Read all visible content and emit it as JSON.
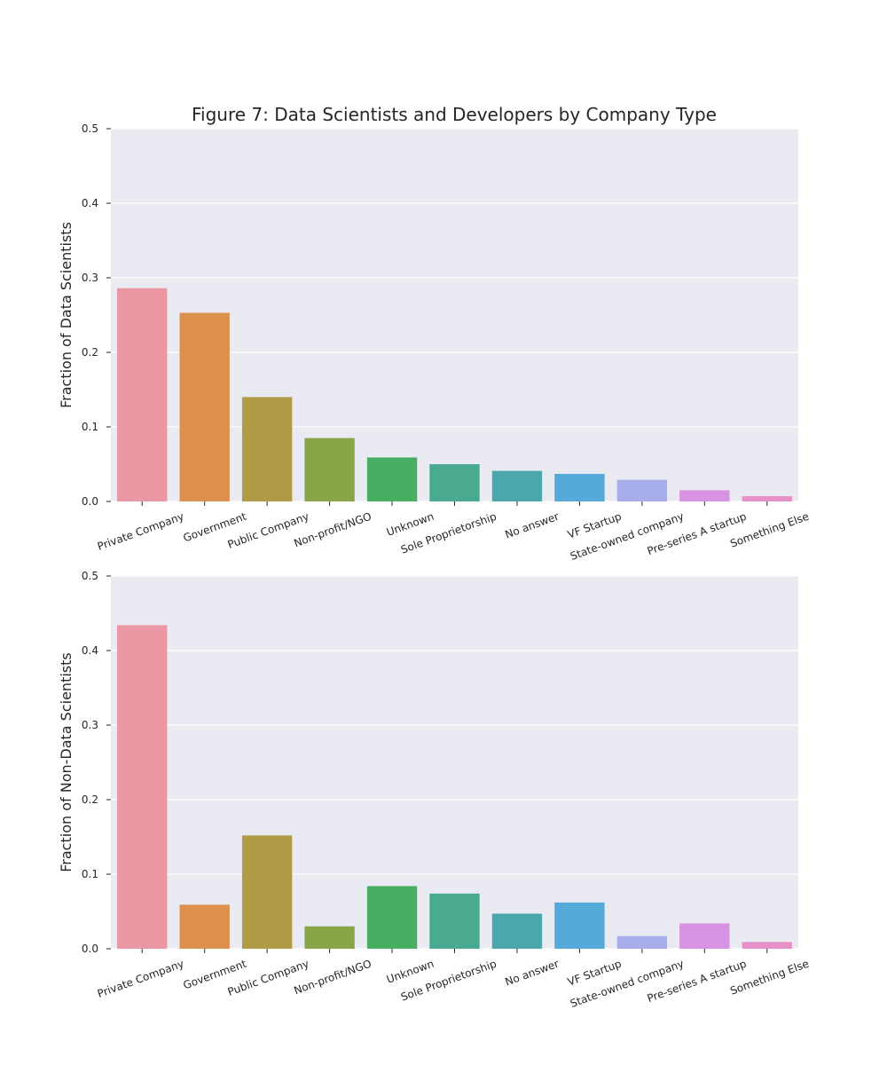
{
  "title": "Figure 7: Data Scientists and Developers by Company Type",
  "colors": [
    "#ea96a3",
    "#dd8f4c",
    "#b09c47",
    "#8aa548",
    "#48ae63",
    "#49aa8f",
    "#4aa8ac",
    "#53a9d8",
    "#a8aeea",
    "#d792e3",
    "#e68fc8"
  ],
  "chart_data": [
    {
      "type": "bar",
      "categories": [
        "Private Company",
        "Government",
        "Public Company",
        "Non-profit/NGO",
        "Unknown",
        "Sole Proprietorship",
        "No answer",
        "VF Startup",
        "State-owned company",
        "Pre-series A startup",
        "Something Else"
      ],
      "values": [
        0.286,
        0.253,
        0.14,
        0.085,
        0.059,
        0.05,
        0.041,
        0.037,
        0.029,
        0.015,
        0.007
      ],
      "ylabel": "Fraction of Data Scientists",
      "ylim": [
        0,
        0.5
      ],
      "yticks": [
        "0.0",
        "0.1",
        "0.2",
        "0.3",
        "0.4",
        "0.5"
      ],
      "grid": true
    },
    {
      "type": "bar",
      "categories": [
        "Private Company",
        "Government",
        "Public Company",
        "Non-profit/NGO",
        "Unknown",
        "Sole Proprietorship",
        "No answer",
        "VF Startup",
        "State-owned company",
        "Pre-series A startup",
        "Something Else"
      ],
      "values": [
        0.434,
        0.059,
        0.152,
        0.03,
        0.084,
        0.074,
        0.047,
        0.062,
        0.017,
        0.034,
        0.009
      ],
      "ylabel": "Fraction of Non-Data Scientists",
      "ylim": [
        0,
        0.5
      ],
      "yticks": [
        "0.0",
        "0.1",
        "0.2",
        "0.3",
        "0.4",
        "0.5"
      ],
      "grid": true
    }
  ]
}
